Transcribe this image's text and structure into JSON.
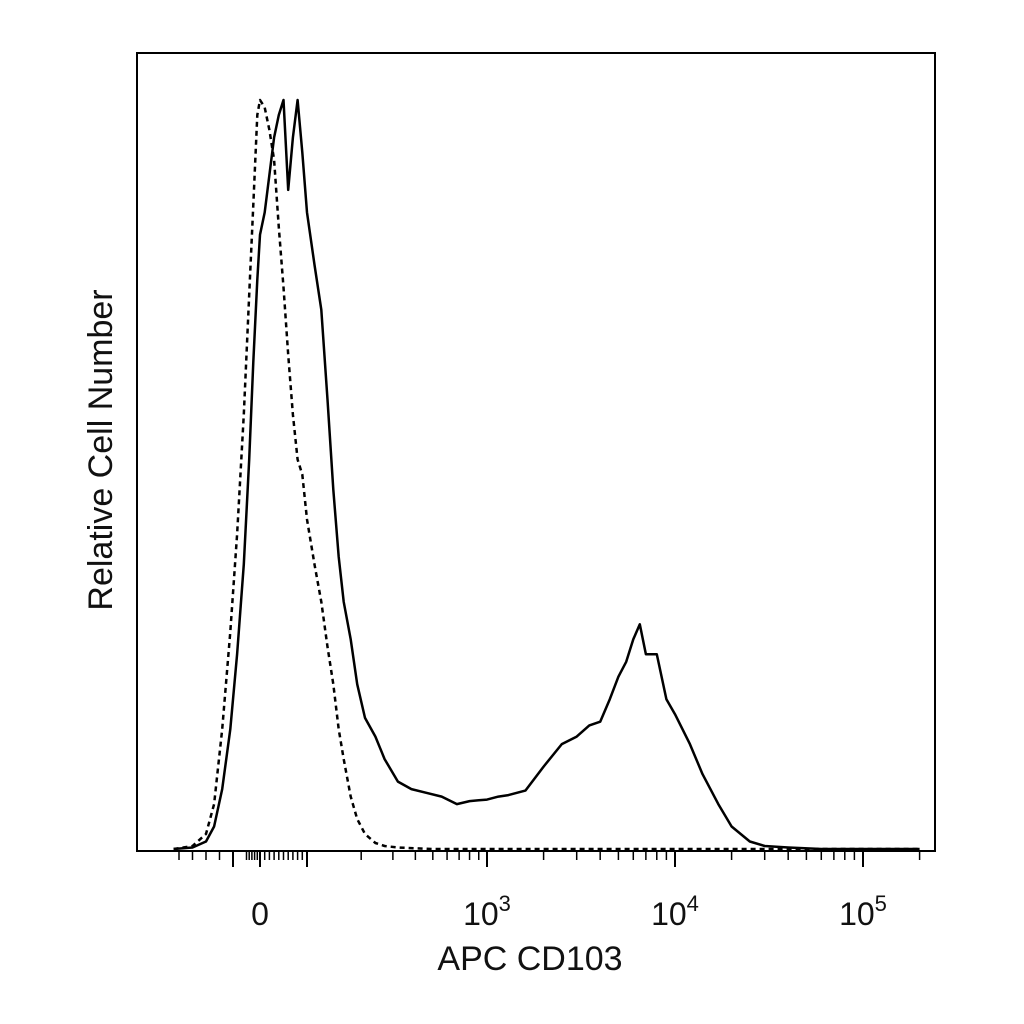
{
  "chart_data": {
    "type": "line",
    "title": "",
    "xlabel": "APC CD103",
    "ylabel": "Relative Cell Number",
    "x_scale": "biexponential",
    "xlim": [
      -320,
      200000
    ],
    "ylim": [
      0,
      1
    ],
    "grid": false,
    "legend": "none",
    "x_tick_labels": [
      {
        "value": 0,
        "base": "0",
        "exp": ""
      },
      {
        "value": 1000,
        "base": "10",
        "exp": "3"
      },
      {
        "value": 10000,
        "base": "10",
        "exp": "4"
      },
      {
        "value": 100000,
        "base": "10",
        "exp": "5"
      }
    ],
    "series": [
      {
        "style": "solid",
        "color": "#000000",
        "x": [
          -320,
          -250,
          -200,
          -170,
          -140,
          -110,
          -85,
          -60,
          -40,
          -25,
          -10,
          0,
          10,
          20,
          30,
          40,
          50,
          60,
          70,
          80,
          90,
          100,
          110,
          120,
          130,
          140,
          150,
          160,
          175,
          190,
          210,
          240,
          270,
          320,
          380,
          460,
          560,
          680,
          800,
          900,
          1000,
          1150,
          1300,
          1600,
          2000,
          2500,
          3000,
          3500,
          4000,
          4500,
          5000,
          5500,
          6000,
          6500,
          7000,
          7500,
          8000,
          9000,
          10000,
          12000,
          14000,
          17000,
          20000,
          25000,
          30000,
          40000,
          60000,
          100000,
          200000
        ],
        "y": [
          0.0,
          0.002,
          0.01,
          0.03,
          0.08,
          0.16,
          0.26,
          0.38,
          0.52,
          0.65,
          0.76,
          0.82,
          0.85,
          0.9,
          0.95,
          0.98,
          1.0,
          0.88,
          0.95,
          1.0,
          0.93,
          0.85,
          0.78,
          0.72,
          0.6,
          0.48,
          0.39,
          0.33,
          0.28,
          0.22,
          0.175,
          0.15,
          0.12,
          0.09,
          0.08,
          0.075,
          0.07,
          0.06,
          0.064,
          0.065,
          0.066,
          0.07,
          0.072,
          0.078,
          0.11,
          0.14,
          0.15,
          0.165,
          0.17,
          0.2,
          0.23,
          0.25,
          0.28,
          0.3,
          0.26,
          0.26,
          0.26,
          0.2,
          0.18,
          0.14,
          0.1,
          0.06,
          0.03,
          0.01,
          0.004,
          0.002,
          0.0,
          0.0,
          0.0
        ]
      },
      {
        "style": "dashed",
        "color": "#000000",
        "x": [
          -320,
          -250,
          -200,
          -170,
          -140,
          -110,
          -85,
          -60,
          -40,
          -25,
          -10,
          0,
          10,
          20,
          30,
          40,
          50,
          60,
          70,
          80,
          90,
          100,
          110,
          120,
          130,
          140,
          150,
          160,
          175,
          190,
          210,
          240,
          270,
          320,
          400,
          500,
          700,
          1000,
          2000,
          5000,
          10000,
          50000,
          200000
        ],
        "y": [
          0.0,
          0.004,
          0.02,
          0.06,
          0.16,
          0.29,
          0.42,
          0.58,
          0.74,
          0.86,
          0.98,
          1.0,
          0.99,
          0.96,
          0.92,
          0.83,
          0.75,
          0.66,
          0.58,
          0.52,
          0.5,
          0.44,
          0.38,
          0.33,
          0.27,
          0.22,
          0.16,
          0.12,
          0.07,
          0.04,
          0.02,
          0.008,
          0.004,
          0.002,
          0.001,
          0.0,
          0.0,
          0.0,
          0.0,
          0.0,
          0.0,
          0.0,
          0.0
        ]
      }
    ]
  }
}
